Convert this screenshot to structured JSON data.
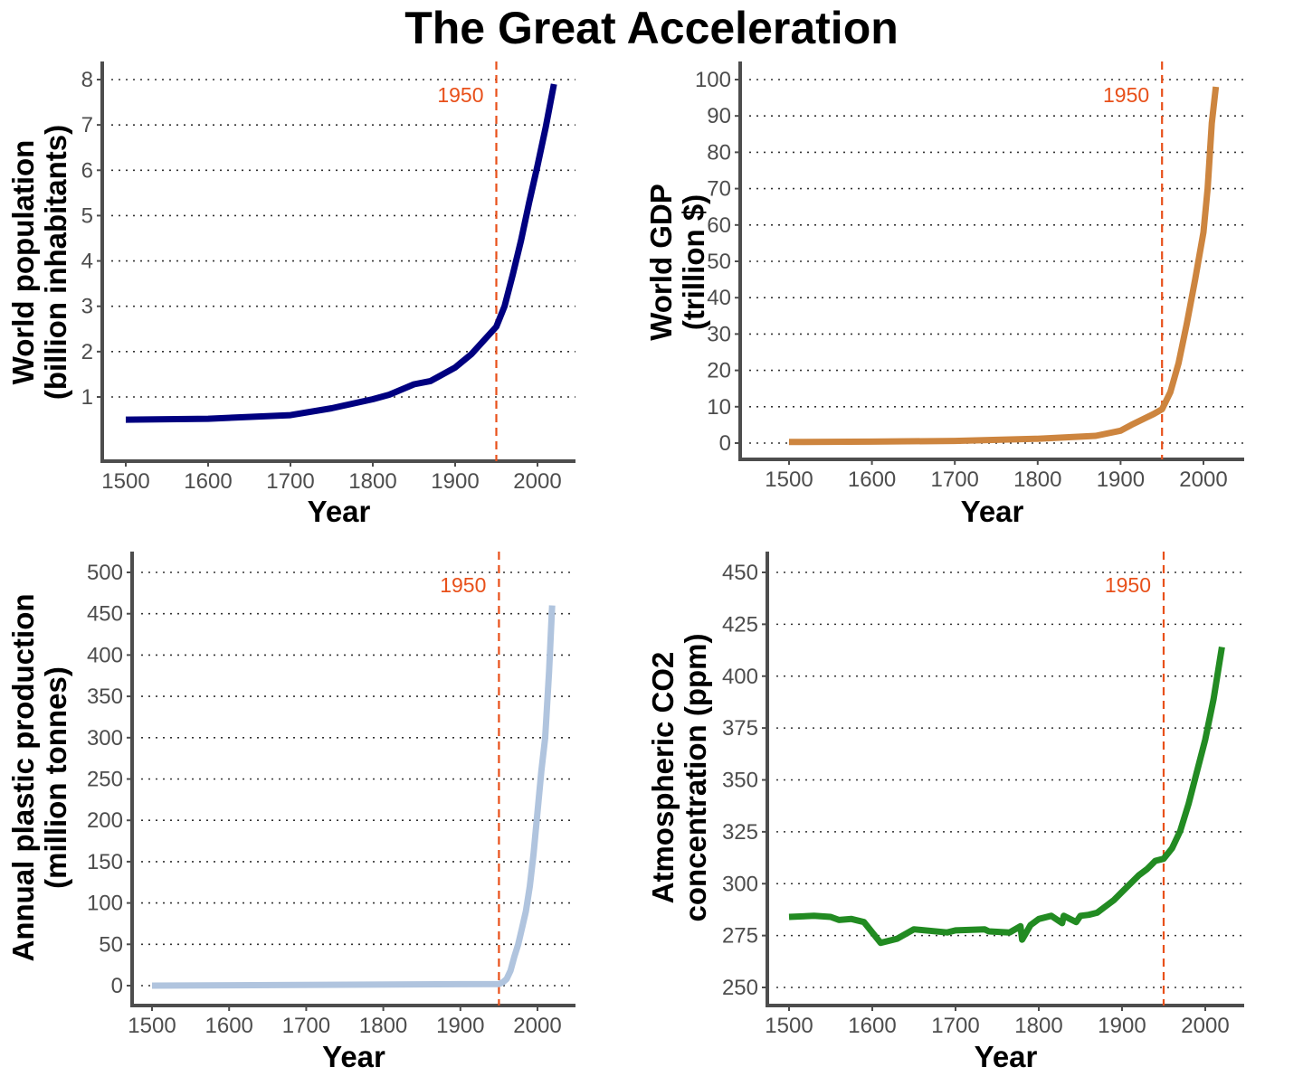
{
  "title": "The Great Acceleration",
  "chart_data": [
    {
      "type": "line",
      "ylabel": [
        "World population",
        "(billion inhabitants)"
      ],
      "xlabel": "Year",
      "xlim": [
        1500,
        2050
      ],
      "xticks": [
        1500,
        1600,
        1700,
        1800,
        1900,
        2000
      ],
      "ylim": [
        -0.4,
        8.4
      ],
      "yticks": [
        1,
        2,
        3,
        4,
        5,
        6,
        7,
        8
      ],
      "grid": "horizontal dotted",
      "color": "#000080",
      "vline": {
        "x": 1950,
        "label": "1950",
        "color": "#e8501a"
      },
      "x": [
        1500,
        1600,
        1700,
        1750,
        1800,
        1820,
        1850,
        1870,
        1900,
        1920,
        1940,
        1950,
        1960,
        1970,
        1980,
        1990,
        2000,
        2010,
        2020
      ],
      "y": [
        0.5,
        0.52,
        0.6,
        0.75,
        0.95,
        1.05,
        1.28,
        1.35,
        1.65,
        1.95,
        2.35,
        2.55,
        3.0,
        3.7,
        4.45,
        5.3,
        6.1,
        6.95,
        7.9
      ]
    },
    {
      "type": "line",
      "ylabel": [
        "World GDP",
        "(trillion $)"
      ],
      "xlabel": "Year",
      "xlim": [
        1500,
        2050
      ],
      "xticks": [
        1500,
        1600,
        1700,
        1800,
        1900,
        2000
      ],
      "ylim": [
        -4,
        104
      ],
      "yticks": [
        0,
        10,
        20,
        30,
        40,
        50,
        60,
        70,
        80,
        90,
        100
      ],
      "grid": "horizontal dotted",
      "color": "#cd853f",
      "vline": {
        "x": 1950,
        "label": "1950",
        "color": "#e8501a"
      },
      "x": [
        1500,
        1600,
        1700,
        1800,
        1870,
        1900,
        1913,
        1940,
        1950,
        1960,
        1970,
        1980,
        1990,
        2000,
        2005,
        2010,
        2015
      ],
      "y": [
        0.3,
        0.4,
        0.6,
        1.2,
        2.0,
        3.4,
        5.0,
        8.0,
        9.3,
        14,
        22,
        33,
        45,
        58,
        70,
        88,
        98
      ]
    },
    {
      "type": "line",
      "ylabel": [
        "Annual plastic production",
        "(million tonnes)"
      ],
      "xlabel": "Year",
      "xlim": [
        1500,
        2050
      ],
      "xticks": [
        1500,
        1600,
        1700,
        1800,
        1900,
        2000
      ],
      "ylim": [
        -25,
        525
      ],
      "yticks": [
        0,
        50,
        100,
        150,
        200,
        250,
        300,
        350,
        400,
        450,
        500
      ],
      "grid": "horizontal dotted",
      "color": "#b0c4de",
      "vline": {
        "x": 1950,
        "label": "1950",
        "color": "#e8501a"
      },
      "x": [
        1500,
        1950,
        1955,
        1960,
        1965,
        1970,
        1975,
        1980,
        1985,
        1990,
        1995,
        2000,
        2005,
        2010,
        2015,
        2019
      ],
      "y": [
        0,
        2,
        4,
        8,
        18,
        35,
        50,
        70,
        90,
        120,
        160,
        210,
        260,
        300,
        380,
        460
      ]
    },
    {
      "type": "line",
      "ylabel": [
        "Atmospheric CO2",
        "concentration (ppm)"
      ],
      "xlabel": "Year",
      "xlim": [
        1500,
        2050
      ],
      "xticks": [
        1500,
        1600,
        1700,
        1800,
        1900,
        2000
      ],
      "ylim": [
        240,
        460
      ],
      "yticks": [
        250,
        275,
        300,
        325,
        350,
        375,
        400,
        425,
        450
      ],
      "grid": "horizontal dotted",
      "color": "#228b22",
      "vline": {
        "x": 1950,
        "label": "1950",
        "color": "#e8501a"
      },
      "x": [
        1500,
        1530,
        1550,
        1560,
        1575,
        1590,
        1610,
        1630,
        1650,
        1690,
        1700,
        1735,
        1740,
        1765,
        1778,
        1780,
        1790,
        1800,
        1815,
        1828,
        1830,
        1845,
        1850,
        1860,
        1870,
        1880,
        1890,
        1900,
        1910,
        1920,
        1930,
        1940,
        1950,
        1960,
        1970,
        1980,
        1990,
        2000,
        2010,
        2020
      ],
      "y": [
        284,
        284.5,
        284,
        282.5,
        283,
        281.5,
        271.5,
        273.5,
        278,
        276.5,
        277.5,
        278,
        277,
        276.5,
        279.5,
        273,
        280,
        283,
        284.5,
        281,
        284.5,
        281.5,
        284.5,
        285,
        286,
        289,
        292,
        296,
        300,
        304,
        307,
        311,
        312,
        317,
        325.5,
        338.5,
        354,
        369.5,
        389,
        414
      ]
    }
  ]
}
